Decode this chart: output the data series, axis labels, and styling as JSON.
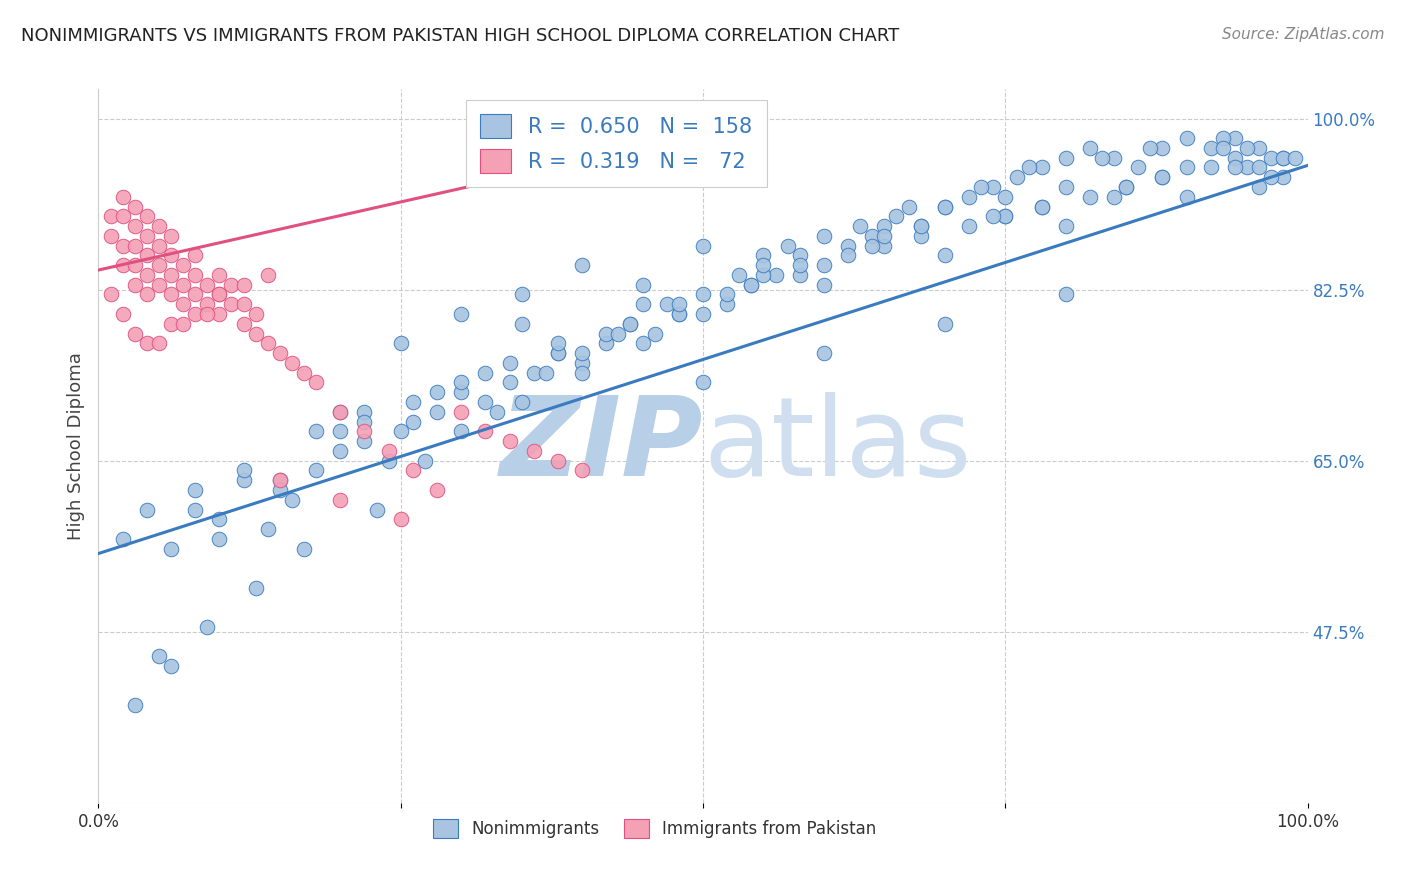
{
  "title": "NONIMMIGRANTS VS IMMIGRANTS FROM PAKISTAN HIGH SCHOOL DIPLOMA CORRELATION CHART",
  "source": "Source: ZipAtlas.com",
  "ylabel": "High School Diploma",
  "legend_label1": "Nonimmigrants",
  "legend_label2": "Immigrants from Pakistan",
  "R1": 0.65,
  "N1": 158,
  "R2": 0.319,
  "N2": 72,
  "color1": "#a8c4e0",
  "color2": "#f4a0b5",
  "line_color1": "#3a7bbf",
  "line_color2": "#e05080",
  "xmin": 0.0,
  "xmax": 1.0,
  "ymin": 0.3,
  "ymax": 1.03,
  "right_yticks": [
    1.0,
    0.825,
    0.65,
    0.475
  ],
  "right_yticklabels": [
    "100.0%",
    "82.5%",
    "65.0%",
    "47.5%"
  ],
  "watermark": "ZIPatlas",
  "watermark_zip_color": "#b8cfe8",
  "watermark_atlas_color": "#d0dff0",
  "blue_scatter_x": [
    0.02,
    0.04,
    0.06,
    0.08,
    0.1,
    0.12,
    0.14,
    0.16,
    0.18,
    0.2,
    0.22,
    0.24,
    0.26,
    0.28,
    0.3,
    0.32,
    0.34,
    0.36,
    0.38,
    0.4,
    0.42,
    0.44,
    0.46,
    0.48,
    0.5,
    0.52,
    0.54,
    0.56,
    0.58,
    0.6,
    0.62,
    0.64,
    0.66,
    0.68,
    0.7,
    0.72,
    0.74,
    0.76,
    0.78,
    0.8,
    0.82,
    0.84,
    0.86,
    0.88,
    0.9,
    0.92,
    0.94,
    0.96,
    0.98,
    0.3,
    0.35,
    0.4,
    0.45,
    0.5,
    0.55,
    0.6,
    0.65,
    0.7,
    0.75,
    0.8,
    0.25,
    0.15,
    0.2,
    0.35,
    0.45,
    0.55,
    0.65,
    0.75,
    0.85,
    0.9,
    0.92,
    0.94,
    0.88,
    0.82,
    0.78,
    0.72,
    0.68,
    0.62,
    0.58,
    0.52,
    0.48,
    0.42,
    0.38,
    0.32,
    0.28,
    0.22,
    0.18,
    0.12,
    0.08,
    0.03,
    0.06,
    0.09,
    0.13,
    0.17,
    0.23,
    0.27,
    0.33,
    0.37,
    0.43,
    0.47,
    0.53,
    0.57,
    0.63,
    0.67,
    0.73,
    0.77,
    0.83,
    0.87,
    0.93,
    0.97,
    0.5,
    0.6,
    0.7,
    0.8,
    0.4,
    0.3,
    0.2,
    0.1,
    0.05,
    0.15,
    0.25,
    0.55,
    0.65,
    0.75,
    0.85,
    0.95,
    0.5,
    0.45,
    0.4,
    0.35,
    0.3,
    0.6,
    0.7,
    0.8,
    0.9,
    0.95,
    0.98,
    0.22,
    0.26,
    0.34,
    0.38,
    0.44,
    0.48,
    0.54,
    0.58,
    0.64,
    0.68,
    0.74,
    0.78,
    0.84,
    0.88,
    0.94,
    0.96,
    0.98,
    0.99,
    0.97,
    0.96,
    0.93
  ],
  "blue_scatter_y": [
    0.57,
    0.6,
    0.56,
    0.62,
    0.59,
    0.63,
    0.58,
    0.61,
    0.64,
    0.66,
    0.67,
    0.65,
    0.69,
    0.7,
    0.72,
    0.71,
    0.73,
    0.74,
    0.76,
    0.75,
    0.77,
    0.79,
    0.78,
    0.8,
    0.82,
    0.81,
    0.83,
    0.84,
    0.86,
    0.85,
    0.87,
    0.88,
    0.9,
    0.89,
    0.91,
    0.92,
    0.93,
    0.94,
    0.95,
    0.96,
    0.97,
    0.96,
    0.95,
    0.97,
    0.98,
    0.97,
    0.98,
    0.97,
    0.96,
    0.8,
    0.82,
    0.85,
    0.83,
    0.87,
    0.86,
    0.88,
    0.89,
    0.91,
    0.92,
    0.93,
    0.77,
    0.63,
    0.68,
    0.79,
    0.81,
    0.84,
    0.87,
    0.9,
    0.93,
    0.95,
    0.95,
    0.96,
    0.94,
    0.92,
    0.91,
    0.89,
    0.88,
    0.86,
    0.84,
    0.82,
    0.8,
    0.78,
    0.76,
    0.74,
    0.72,
    0.7,
    0.68,
    0.64,
    0.6,
    0.4,
    0.44,
    0.48,
    0.52,
    0.56,
    0.6,
    0.65,
    0.7,
    0.74,
    0.78,
    0.81,
    0.84,
    0.87,
    0.89,
    0.91,
    0.93,
    0.95,
    0.96,
    0.97,
    0.98,
    0.96,
    0.73,
    0.76,
    0.79,
    0.82,
    0.76,
    0.73,
    0.7,
    0.57,
    0.45,
    0.62,
    0.68,
    0.85,
    0.88,
    0.9,
    0.93,
    0.97,
    0.8,
    0.77,
    0.74,
    0.71,
    0.68,
    0.83,
    0.86,
    0.89,
    0.92,
    0.95,
    0.94,
    0.69,
    0.71,
    0.75,
    0.77,
    0.79,
    0.81,
    0.83,
    0.85,
    0.87,
    0.89,
    0.9,
    0.91,
    0.92,
    0.94,
    0.95,
    0.95,
    0.96,
    0.96,
    0.94,
    0.93,
    0.97
  ],
  "pink_scatter_x": [
    0.01,
    0.01,
    0.02,
    0.02,
    0.02,
    0.02,
    0.03,
    0.03,
    0.03,
    0.03,
    0.03,
    0.04,
    0.04,
    0.04,
    0.04,
    0.04,
    0.05,
    0.05,
    0.05,
    0.05,
    0.06,
    0.06,
    0.06,
    0.06,
    0.07,
    0.07,
    0.07,
    0.08,
    0.08,
    0.08,
    0.09,
    0.09,
    0.1,
    0.1,
    0.1,
    0.11,
    0.11,
    0.12,
    0.12,
    0.13,
    0.13,
    0.14,
    0.15,
    0.16,
    0.17,
    0.18,
    0.2,
    0.22,
    0.24,
    0.26,
    0.28,
    0.3,
    0.32,
    0.34,
    0.36,
    0.38,
    0.4,
    0.15,
    0.2,
    0.25,
    0.08,
    0.1,
    0.12,
    0.14,
    0.06,
    0.04,
    0.03,
    0.02,
    0.01,
    0.05,
    0.07,
    0.09
  ],
  "pink_scatter_y": [
    0.88,
    0.9,
    0.85,
    0.87,
    0.9,
    0.92,
    0.83,
    0.85,
    0.87,
    0.89,
    0.91,
    0.82,
    0.84,
    0.86,
    0.88,
    0.9,
    0.83,
    0.85,
    0.87,
    0.89,
    0.82,
    0.84,
    0.86,
    0.88,
    0.81,
    0.83,
    0.85,
    0.82,
    0.84,
    0.86,
    0.81,
    0.83,
    0.8,
    0.82,
    0.84,
    0.81,
    0.83,
    0.79,
    0.81,
    0.78,
    0.8,
    0.77,
    0.76,
    0.75,
    0.74,
    0.73,
    0.7,
    0.68,
    0.66,
    0.64,
    0.62,
    0.7,
    0.68,
    0.67,
    0.66,
    0.65,
    0.64,
    0.63,
    0.61,
    0.59,
    0.8,
    0.82,
    0.83,
    0.84,
    0.79,
    0.77,
    0.78,
    0.8,
    0.82,
    0.77,
    0.79,
    0.8
  ],
  "blue_line_x": [
    0.0,
    1.0
  ],
  "blue_line_y": [
    0.555,
    0.952
  ],
  "pink_line_x": [
    0.0,
    0.42
  ],
  "pink_line_y": [
    0.845,
    0.962
  ]
}
